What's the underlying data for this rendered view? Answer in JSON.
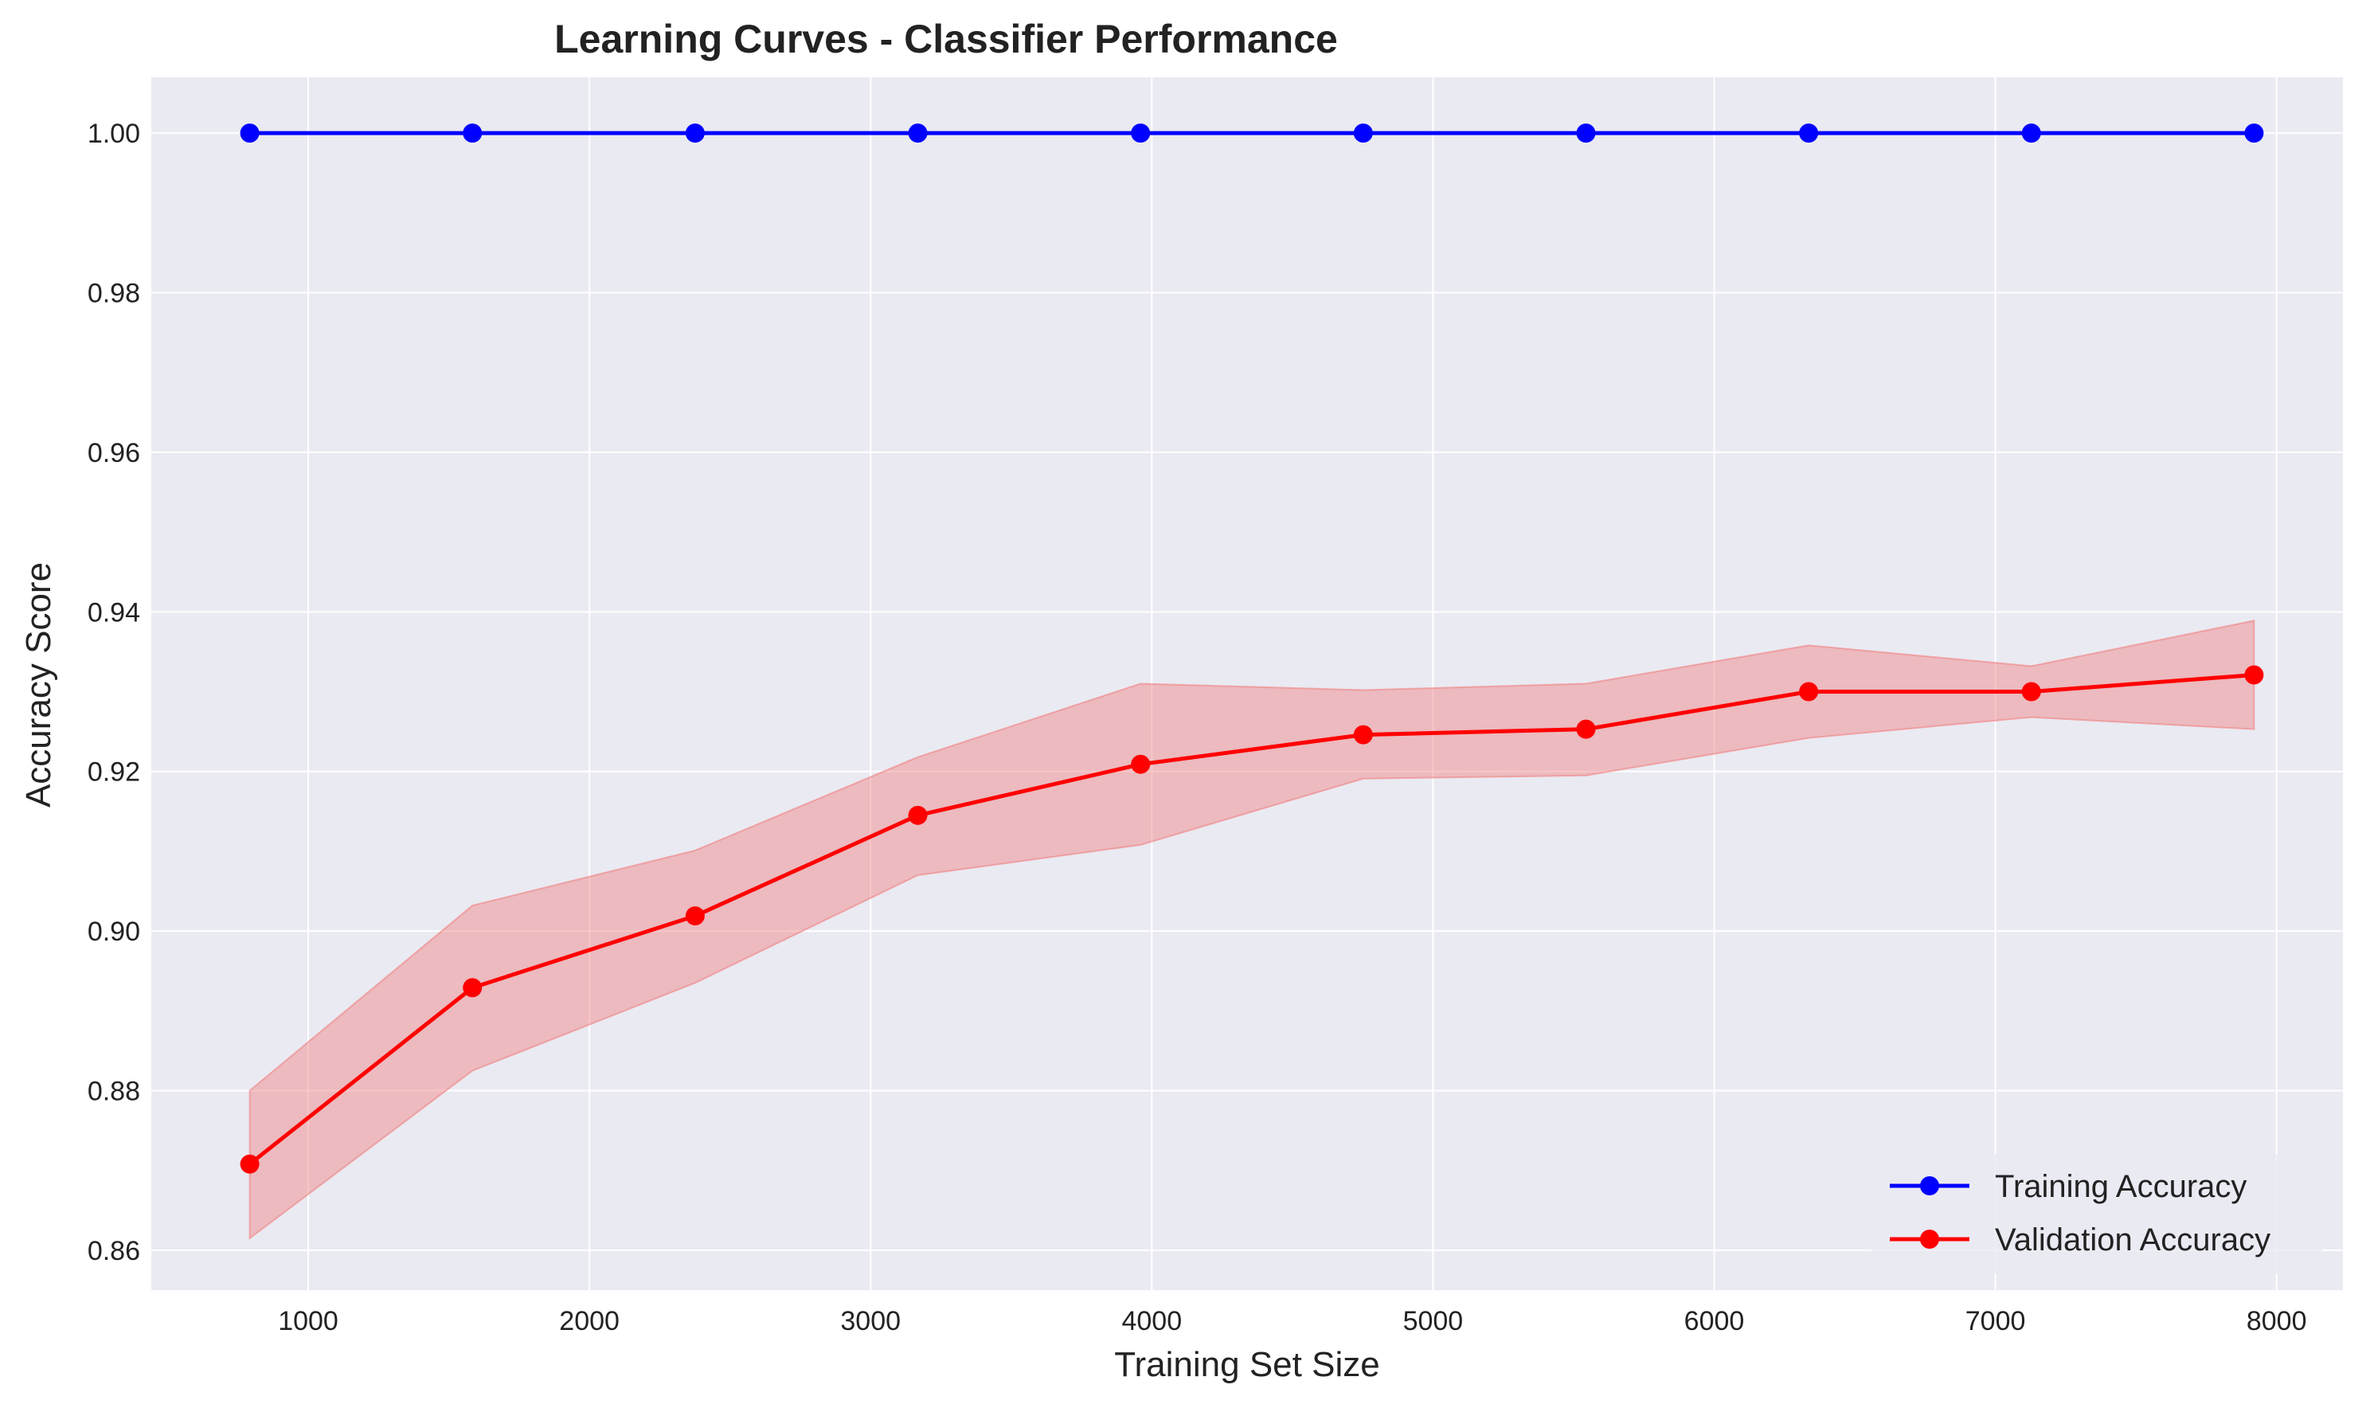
{
  "chart_data": {
    "type": "line",
    "title": "Learning Curves - Classifier Performance",
    "xlabel": "Training Set Size",
    "ylabel": "Accuracy Score",
    "xlim": [
      442,
      8236
    ],
    "ylim": [
      0.855,
      1.007
    ],
    "xticks": [
      1000,
      2000,
      3000,
      4000,
      5000,
      6000,
      7000,
      8000
    ],
    "xtick_labels": [
      "1000",
      "2000",
      "3000",
      "4000",
      "5000",
      "6000",
      "7000",
      "8000"
    ],
    "yticks": [
      0.86,
      0.88,
      0.9,
      0.92,
      0.94,
      0.96,
      0.98,
      1.0
    ],
    "ytick_labels": [
      "0.86",
      "0.88",
      "0.90",
      "0.92",
      "0.94",
      "0.96",
      "0.98",
      "1.00"
    ],
    "grid": true,
    "legend_position": "lower-right",
    "background_color": "#EAEAF2",
    "x": [
      792,
      1584,
      2376,
      3168,
      3960,
      4752,
      5544,
      6336,
      7128,
      7920
    ],
    "series": [
      {
        "name": "Training Accuracy",
        "color": "#0000FF",
        "marker": "circle",
        "values": [
          1.0,
          1.0,
          1.0,
          1.0,
          1.0,
          1.0,
          1.0,
          1.0,
          1.0,
          1.0
        ]
      },
      {
        "name": "Validation Accuracy",
        "color": "#FF0000",
        "marker": "circle",
        "values": [
          0.8708,
          0.8929,
          0.9019,
          0.9145,
          0.9209,
          0.9246,
          0.9253,
          0.93,
          0.93,
          0.9321
        ],
        "band_upper": [
          0.88,
          0.9032,
          0.9101,
          0.9218,
          0.931,
          0.9302,
          0.931,
          0.9358,
          0.9332,
          0.9389
        ],
        "band_lower": [
          0.8615,
          0.8825,
          0.8935,
          0.907,
          0.9108,
          0.9191,
          0.9195,
          0.9242,
          0.9268,
          0.9253
        ],
        "band_color": "#F08080"
      }
    ]
  }
}
